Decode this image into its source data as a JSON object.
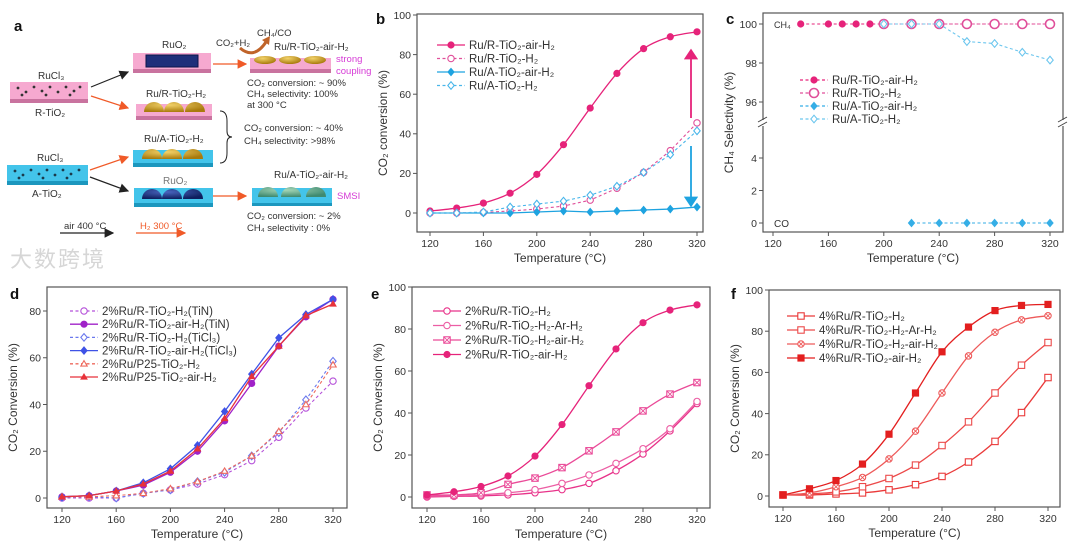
{
  "panel_labels": [
    "a",
    "b",
    "c",
    "d",
    "e",
    "f"
  ],
  "schematic": {
    "rucl3_top": "RuCl₃",
    "r_tio2": "R-TiO₂",
    "rucl3_bottom": "RuCl₃",
    "a_tio2": "A-TiO₂",
    "ruo2_top": "RuO₂",
    "ru_r_h2": "Ru/R-TiO₂-H₂",
    "ru_a_h2": "Ru/A-TiO₂-H₂",
    "ruo2_bottom": "RuO₂",
    "reactants": "CO₂+H₂",
    "products": "CH₄/CO",
    "ru_r_air_h2": "Ru/R-TiO₂-air-H₂",
    "strong_coupling_1": "strong",
    "strong_coupling_2": "coupling",
    "r_air_conv": "CO₂ conversion: ~ 90%",
    "r_air_sel": "CH₄  selectivity:  100%",
    "r_air_temp": "at 300 °C",
    "h2_conv": "CO₂ conversion: ~ 40%",
    "h2_sel": "CH₄  selectivity:  >98%",
    "ru_a_air_h2": "Ru/A-TiO₂-air-H₂",
    "smsi": "SMSI",
    "a_air_conv": "CO₂ conversion: ~ 2%",
    "a_air_sel": "CH₄  selectivity :  0%",
    "legend_air": "air  400 °C",
    "legend_h2": "H₂ 300 °C",
    "colors": {
      "pink": "#f29cc8",
      "cyan": "#3fc3e8",
      "gold": "#c9961a",
      "navy": "#1f2f7a",
      "green": "#5aa58a",
      "red": "#f05a28",
      "magenta": "#d63bd6"
    }
  },
  "watermark": "大数跨境",
  "chart_data": [
    {
      "id": "b",
      "type": "line",
      "title": "",
      "xlabel": "Temperature (°C)",
      "ylabel": "CO₂ conversion (%)",
      "xlim": [
        110,
        330
      ],
      "ylim": [
        -10,
        100
      ],
      "xticks": [
        120,
        160,
        200,
        240,
        280,
        320
      ],
      "yticks": [
        0,
        20,
        40,
        60,
        80,
        100
      ],
      "legend_position": "top-left",
      "x": [
        120,
        140,
        160,
        180,
        200,
        220,
        240,
        260,
        280,
        300,
        320
      ],
      "series": [
        {
          "name": "Ru/R-TiO₂-air-H₂",
          "color": "#e6237a",
          "dash": false,
          "marker": "filled-circle",
          "smooth": true,
          "values": [
            1,
            2.5,
            5,
            10,
            19.5,
            34.5,
            53,
            70.5,
            83,
            89,
            91.5
          ]
        },
        {
          "name": "Ru/R-TiO₂-H₂",
          "color": "#e04f9a",
          "dash": true,
          "marker": "open-circle",
          "smooth": false,
          "values": [
            0,
            0,
            0.3,
            1,
            2,
            3.5,
            6.5,
            12.5,
            20.5,
            31.5,
            45.5
          ]
        },
        {
          "name": "Ru/A-TiO₂-air-H₂",
          "color": "#1ea3e0",
          "dash": false,
          "marker": "filled-diamond",
          "smooth": false,
          "values": [
            0,
            0,
            0,
            0,
            0.5,
            1,
            0.5,
            1,
            1.5,
            2,
            3
          ]
        },
        {
          "name": "Ru/A-TiO₂-H₂",
          "color": "#49b6ea",
          "dash": true,
          "marker": "open-diamond",
          "smooth": false,
          "values": [
            0,
            0,
            0.5,
            3,
            4.5,
            6,
            9,
            13.5,
            20.5,
            29.5,
            41.5
          ]
        }
      ]
    },
    {
      "id": "c",
      "type": "line",
      "title": "",
      "xlabel": "Temperature (°C)",
      "ylabel": "CH₄ Selectivity (%)",
      "xlim": [
        120,
        330
      ],
      "ylim": [
        -0.5,
        100.5
      ],
      "axis_break": [
        5,
        95
      ],
      "xticks": [
        120,
        160,
        200,
        240,
        280,
        320
      ],
      "yticks": [
        0,
        2,
        4,
        96,
        98,
        100
      ],
      "annotations": [
        "CH₄",
        "CO"
      ],
      "legend_position": "center-left",
      "series": [
        {
          "name": "Ru/R-TiO₂-air-H₂",
          "color": "#e6237a",
          "dash": true,
          "marker": "filled-circle",
          "x": [
            140,
            160,
            170,
            180,
            190,
            200,
            220,
            240,
            260,
            280,
            300,
            320
          ],
          "values": [
            100,
            100,
            100,
            100,
            100,
            100,
            100,
            100,
            100,
            100,
            100,
            100
          ]
        },
        {
          "name": "Ru/R-TiO₂-H₂",
          "color": "#e04f9a",
          "dash": true,
          "marker": "open-circle-big",
          "x": [
            200,
            220,
            240,
            260,
            280,
            300,
            320
          ],
          "values": [
            100,
            100,
            100,
            100,
            100,
            100,
            100
          ]
        },
        {
          "name": "Ru/A-TiO₂-air-H₂",
          "color": "#35aee6",
          "dash": true,
          "marker": "filled-diamond",
          "x": [
            220,
            240,
            260,
            280,
            300,
            320
          ],
          "values": [
            0,
            0,
            0,
            0,
            0,
            0
          ]
        },
        {
          "name": "Ru/A-TiO₂-H₂",
          "color": "#6cc6ee",
          "dash": true,
          "marker": "open-diamond",
          "x": [
            200,
            220,
            240,
            260,
            280,
            300,
            320
          ],
          "values": [
            100,
            100,
            100,
            99.1,
            99,
            98.55,
            98.15
          ]
        }
      ]
    },
    {
      "id": "d",
      "type": "line",
      "title": "",
      "xlabel": "Temperature (°C)",
      "ylabel": "CO₂ Conversion (%)",
      "xlim": [
        115,
        325
      ],
      "ylim": [
        -4,
        88
      ],
      "xticks": [
        120,
        160,
        200,
        240,
        280,
        320
      ],
      "yticks": [
        0,
        20,
        40,
        60,
        80
      ],
      "legend_position": "top-left",
      "x": [
        120,
        140,
        160,
        180,
        200,
        220,
        240,
        260,
        280,
        300,
        320
      ],
      "series": [
        {
          "name": "2%Ru/R-TiO₂-H₂(TiN)",
          "color": "#b551d9",
          "dash": true,
          "marker": "open-circle",
          "values": [
            0,
            0,
            0,
            2,
            3.5,
            6,
            10,
            16,
            26,
            38.5,
            50
          ]
        },
        {
          "name": "2%Ru/R-TiO₂-air-H₂(TiN)",
          "color": "#a022c8",
          "dash": false,
          "marker": "filled-circle",
          "values": [
            0.5,
            1,
            3,
            5.5,
            11,
            20,
            33,
            49,
            65,
            77.5,
            85
          ]
        },
        {
          "name": "2%Ru/R-TiO₂-H₂(TiCl₃)",
          "color": "#6a78ee",
          "dash": true,
          "marker": "open-diamond",
          "values": [
            0.3,
            0.5,
            0,
            2,
            3.5,
            7,
            11,
            18,
            28,
            42,
            58.5
          ]
        },
        {
          "name": "2%Ru/R-TiO₂-air-H₂(TiCl₃)",
          "color": "#3f52e6",
          "dash": false,
          "marker": "filled-diamond",
          "values": [
            0.5,
            1,
            3,
            6.5,
            12.5,
            22.5,
            37,
            53,
            68.5,
            78.5,
            85
          ]
        },
        {
          "name": "2%Ru/P25-TiO₂-H₂",
          "color": "#ee6a5e",
          "dash": true,
          "marker": "open-triangle",
          "values": [
            0.5,
            0.5,
            1,
            2,
            4,
            7,
            11.5,
            18,
            28.5,
            40,
            57
          ]
        },
        {
          "name": "2%Ru/P25-TiO₂-air-H₂",
          "color": "#e8323a",
          "dash": false,
          "marker": "filled-triangle",
          "values": [
            0.5,
            1,
            3,
            6,
            11.5,
            21,
            34,
            52,
            65,
            78,
            83
          ]
        }
      ]
    },
    {
      "id": "e",
      "type": "line",
      "title": "",
      "xlabel": "Temperature (°C)",
      "ylabel": "CO₂ Conversion (%)",
      "xlim": [
        110,
        330
      ],
      "ylim": [
        -5,
        100
      ],
      "xticks": [
        120,
        160,
        200,
        240,
        280,
        320
      ],
      "yticks": [
        0,
        20,
        40,
        60,
        80,
        100
      ],
      "legend_position": "top-left",
      "x": [
        120,
        140,
        160,
        180,
        200,
        220,
        240,
        260,
        280,
        300,
        320
      ],
      "series": [
        {
          "name": "2%Ru/R-TiO₂-H₂",
          "color": "#e8338a",
          "dash": false,
          "marker": "open-circle",
          "smooth": true,
          "values": [
            0,
            0.3,
            0.5,
            1,
            2,
            3.5,
            6.5,
            12.5,
            20.5,
            31.5,
            44.5
          ]
        },
        {
          "name": "2%Ru/R-TiO₂-H₂-Ar-H₂",
          "color": "#ec5ea4",
          "dash": false,
          "marker": "open-circle",
          "smooth": true,
          "values": [
            0.5,
            0.5,
            1,
            2,
            3.5,
            6.5,
            10.5,
            16,
            23,
            32.5,
            45.5
          ]
        },
        {
          "name": "2%Ru/R-TiO₂-H₂-air-H₂",
          "color": "#ea4a98",
          "dash": false,
          "marker": "crossed-square",
          "smooth": true,
          "values": [
            1,
            1,
            2,
            6,
            9,
            14,
            22,
            31,
            41,
            49,
            54.5
          ]
        },
        {
          "name": "2%Ru/R-TiO₂-air-H₂",
          "color": "#e6237a",
          "dash": false,
          "marker": "filled-circle",
          "smooth": true,
          "values": [
            1,
            2.5,
            5,
            10,
            19.5,
            34.5,
            53,
            70.5,
            83,
            89,
            91.5
          ]
        }
      ]
    },
    {
      "id": "f",
      "type": "line",
      "title": "",
      "xlabel": "Temperature (°C)",
      "ylabel": "CO₂ Conversion (%)",
      "xlim": [
        110,
        330
      ],
      "ylim": [
        -5,
        100
      ],
      "xticks": [
        120,
        160,
        200,
        240,
        280,
        320
      ],
      "yticks": [
        0,
        20,
        40,
        60,
        80,
        100
      ],
      "legend_position": "top-left",
      "x": [
        120,
        140,
        160,
        180,
        200,
        220,
        240,
        260,
        280,
        300,
        320
      ],
      "series": [
        {
          "name": "4%Ru/R-TiO₂-H₂",
          "color": "#ea3a3a",
          "dash": false,
          "marker": "open-square",
          "smooth": true,
          "values": [
            0.5,
            0.5,
            1,
            1.5,
            3,
            5.5,
            9.5,
            16.5,
            26.5,
            40.5,
            57.5
          ]
        },
        {
          "name": "4%Ru/R-TiO₂-H₂-Ar-H₂",
          "color": "#ec4a4a",
          "dash": false,
          "marker": "open-square",
          "smooth": true,
          "values": [
            0.5,
            1,
            2,
            4.5,
            8.5,
            15,
            24.5,
            36,
            50,
            63.5,
            74.5
          ]
        },
        {
          "name": "4%Ru/R-TiO₂-H₂-air-H₂",
          "color": "#ee5a5a",
          "dash": false,
          "marker": "crossed-circle",
          "smooth": true,
          "values": [
            0.5,
            1.5,
            4.5,
            9,
            18,
            31.5,
            50,
            68,
            79.5,
            85.5,
            87.5
          ]
        },
        {
          "name": "4%Ru/R-TiO₂-air-H₂",
          "color": "#e31f1f",
          "dash": false,
          "marker": "filled-square",
          "smooth": true,
          "values": [
            0.5,
            3.5,
            7.5,
            15.5,
            30,
            50,
            70,
            82,
            90,
            92.5,
            93
          ]
        }
      ]
    }
  ]
}
